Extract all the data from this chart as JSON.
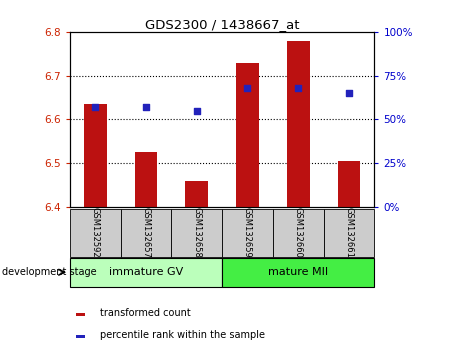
{
  "title": "GDS2300 / 1438667_at",
  "samples": [
    "GSM132592",
    "GSM132657",
    "GSM132658",
    "GSM132659",
    "GSM132660",
    "GSM132661"
  ],
  "bar_tops": [
    6.635,
    6.525,
    6.46,
    6.73,
    6.78,
    6.505
  ],
  "bar_bottom": 6.4,
  "percentile_ranks": [
    57,
    57,
    55,
    68,
    68,
    65
  ],
  "ylim_left": [
    6.4,
    6.8
  ],
  "ylim_right": [
    0,
    100
  ],
  "yticks_left": [
    6.4,
    6.5,
    6.6,
    6.7,
    6.8
  ],
  "yticks_right": [
    0,
    25,
    50,
    75,
    100
  ],
  "bar_color": "#bb1111",
  "dot_color": "#2222bb",
  "left_tick_color": "#cc2200",
  "right_tick_color": "#0000cc",
  "groups": [
    {
      "label": "immature GV",
      "indices": [
        0,
        1,
        2
      ],
      "color": "#bbffbb"
    },
    {
      "label": "mature MII",
      "indices": [
        3,
        4,
        5
      ],
      "color": "#44ee44"
    }
  ],
  "xlabel_stage": "development stage",
  "legend_bar_label": "transformed count",
  "legend_dot_label": "percentile rank within the sample",
  "sample_bg_color": "#cccccc",
  "bar_width": 0.45
}
